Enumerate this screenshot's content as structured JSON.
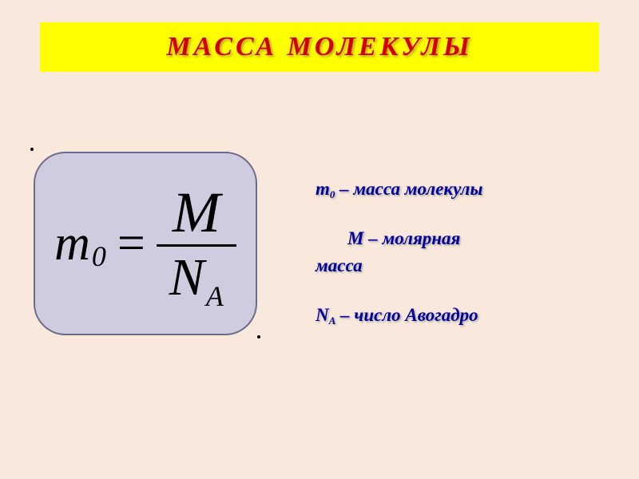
{
  "colors": {
    "background": "#f9e9dd",
    "banner_bg": "#ffff00",
    "title_text": "#d40000",
    "formula_box_bg": "#cfcce0",
    "formula_box_border": "#6a6a8a",
    "formula_text": "#000000",
    "legend_text": "#000099"
  },
  "title": "МАССА   МОЛЕКУЛЫ",
  "formula": {
    "lhs_var": "m",
    "lhs_sub": "0",
    "equals": "=",
    "numerator": "M",
    "denom_var": "N",
    "denom_sub": "A"
  },
  "legend": {
    "line1_symbol": "m",
    "line1_sub": "0",
    "line1_text": " – масса молекулы",
    "line2_symbol": "M",
    "line2_text_a": " – молярная",
    "line2_text_b": "масса",
    "line3_symbol": "N",
    "line3_sub": "A",
    "line3_text": " – число Авогадро"
  },
  "typography": {
    "title_fontsize": 34,
    "formula_main_fontsize": 62,
    "formula_numerator_fontsize": 72,
    "formula_sub_fontsize": 36,
    "legend_fontsize": 23,
    "legend_sub_fontsize": 13
  }
}
